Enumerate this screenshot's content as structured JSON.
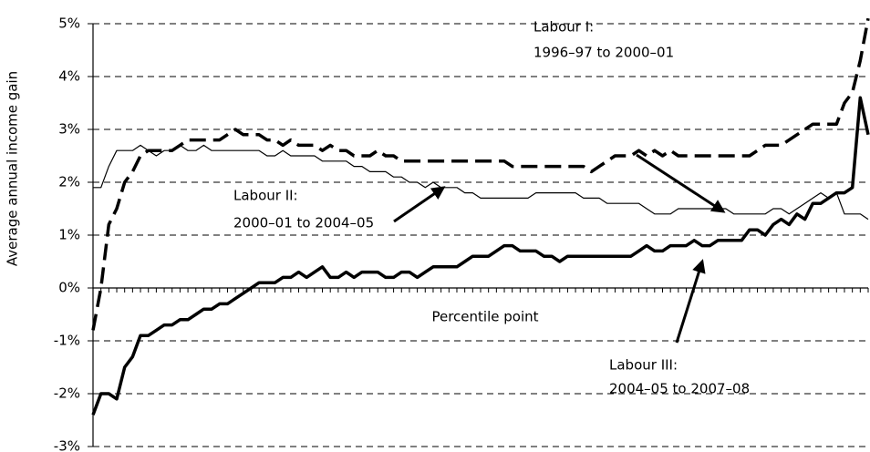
{
  "chart_data": {
    "type": "line",
    "y_label": "Average annual income gain",
    "x_label": "Percentile point",
    "x": [
      1,
      2,
      3,
      4,
      5,
      6,
      7,
      8,
      9,
      10,
      11,
      12,
      13,
      14,
      15,
      16,
      17,
      18,
      19,
      20,
      21,
      22,
      23,
      24,
      25,
      26,
      27,
      28,
      29,
      30,
      31,
      32,
      33,
      34,
      35,
      36,
      37,
      38,
      39,
      40,
      41,
      42,
      43,
      44,
      45,
      46,
      47,
      48,
      49,
      50,
      51,
      52,
      53,
      54,
      55,
      56,
      57,
      58,
      59,
      60,
      61,
      62,
      63,
      64,
      65,
      66,
      67,
      68,
      69,
      70,
      71,
      72,
      73,
      74,
      75,
      76,
      77,
      78,
      79,
      80,
      81,
      82,
      83,
      84,
      85,
      86,
      87,
      88,
      89,
      90,
      91,
      92,
      93,
      94,
      95,
      96,
      97,
      98,
      99
    ],
    "xlim": [
      1,
      99
    ],
    "ylim": [
      -3,
      5
    ],
    "yticks": [
      {
        "value": -3,
        "label": "-3%"
      },
      {
        "value": -2,
        "label": "-2%"
      },
      {
        "value": -1,
        "label": "-1%"
      },
      {
        "value": 0,
        "label": "0%"
      },
      {
        "value": 1,
        "label": "1%"
      },
      {
        "value": 2,
        "label": "2%"
      },
      {
        "value": 3,
        "label": "3%"
      },
      {
        "value": 4,
        "label": "4%"
      },
      {
        "value": 5,
        "label": "5%"
      }
    ],
    "grid": true,
    "series": [
      {
        "name": "Labour I:",
        "period": "1996–97 to 2000–01",
        "color": "#000000",
        "style": "dashed",
        "width": 3.5,
        "values": [
          -0.8,
          0.0,
          1.2,
          1.5,
          2.0,
          2.2,
          2.5,
          2.6,
          2.6,
          2.6,
          2.6,
          2.7,
          2.8,
          2.8,
          2.8,
          2.8,
          2.8,
          2.9,
          3.0,
          2.9,
          2.9,
          2.9,
          2.8,
          2.8,
          2.7,
          2.8,
          2.7,
          2.7,
          2.7,
          2.6,
          2.7,
          2.6,
          2.6,
          2.5,
          2.5,
          2.5,
          2.6,
          2.5,
          2.5,
          2.4,
          2.4,
          2.4,
          2.4,
          2.4,
          2.4,
          2.4,
          2.4,
          2.4,
          2.4,
          2.4,
          2.4,
          2.4,
          2.4,
          2.3,
          2.3,
          2.3,
          2.3,
          2.3,
          2.3,
          2.3,
          2.3,
          2.3,
          2.3,
          2.2,
          2.3,
          2.4,
          2.5,
          2.5,
          2.5,
          2.6,
          2.5,
          2.6,
          2.5,
          2.6,
          2.5,
          2.5,
          2.5,
          2.5,
          2.5,
          2.5,
          2.5,
          2.5,
          2.5,
          2.5,
          2.6,
          2.7,
          2.7,
          2.7,
          2.8,
          2.9,
          3.0,
          3.1,
          3.1,
          3.1,
          3.1,
          3.5,
          3.7,
          4.3,
          5.1
        ]
      },
      {
        "name": "Labour II:",
        "period": "2000–01 to 2004–05",
        "color": "#000000",
        "style": "solid",
        "width": 1.2,
        "values": [
          1.9,
          1.9,
          2.3,
          2.6,
          2.6,
          2.6,
          2.7,
          2.6,
          2.5,
          2.6,
          2.6,
          2.7,
          2.6,
          2.6,
          2.7,
          2.6,
          2.6,
          2.6,
          2.6,
          2.6,
          2.6,
          2.6,
          2.5,
          2.5,
          2.6,
          2.5,
          2.5,
          2.5,
          2.5,
          2.4,
          2.4,
          2.4,
          2.4,
          2.3,
          2.3,
          2.2,
          2.2,
          2.2,
          2.1,
          2.1,
          2.0,
          2.0,
          1.9,
          2.0,
          1.9,
          1.9,
          1.9,
          1.8,
          1.8,
          1.7,
          1.7,
          1.7,
          1.7,
          1.7,
          1.7,
          1.7,
          1.8,
          1.8,
          1.8,
          1.8,
          1.8,
          1.8,
          1.7,
          1.7,
          1.7,
          1.6,
          1.6,
          1.6,
          1.6,
          1.6,
          1.5,
          1.4,
          1.4,
          1.4,
          1.5,
          1.5,
          1.5,
          1.5,
          1.5,
          1.5,
          1.5,
          1.4,
          1.4,
          1.4,
          1.4,
          1.4,
          1.5,
          1.5,
          1.4,
          1.5,
          1.6,
          1.7,
          1.8,
          1.7,
          1.8,
          1.4,
          1.4,
          1.4,
          1.3
        ]
      },
      {
        "name": "Labour III:",
        "period": "2004–05 to 2007–08",
        "color": "#000000",
        "style": "solid",
        "width": 3.5,
        "values": [
          -2.4,
          -2.0,
          -2.0,
          -2.1,
          -1.5,
          -1.3,
          -0.9,
          -0.9,
          -0.8,
          -0.7,
          -0.7,
          -0.6,
          -0.6,
          -0.5,
          -0.4,
          -0.4,
          -0.3,
          -0.3,
          -0.2,
          -0.1,
          0.0,
          0.1,
          0.1,
          0.1,
          0.2,
          0.2,
          0.3,
          0.2,
          0.3,
          0.4,
          0.2,
          0.2,
          0.3,
          0.2,
          0.3,
          0.3,
          0.3,
          0.2,
          0.2,
          0.3,
          0.3,
          0.2,
          0.3,
          0.4,
          0.4,
          0.4,
          0.4,
          0.5,
          0.6,
          0.6,
          0.6,
          0.7,
          0.8,
          0.8,
          0.7,
          0.7,
          0.7,
          0.6,
          0.6,
          0.5,
          0.6,
          0.6,
          0.6,
          0.6,
          0.6,
          0.6,
          0.6,
          0.6,
          0.6,
          0.7,
          0.8,
          0.7,
          0.7,
          0.8,
          0.8,
          0.8,
          0.9,
          0.8,
          0.8,
          0.9,
          0.9,
          0.9,
          0.9,
          1.1,
          1.1,
          1.0,
          1.2,
          1.3,
          1.2,
          1.4,
          1.3,
          1.6,
          1.6,
          1.7,
          1.8,
          1.8,
          1.9,
          3.6,
          2.9
        ]
      }
    ]
  }
}
